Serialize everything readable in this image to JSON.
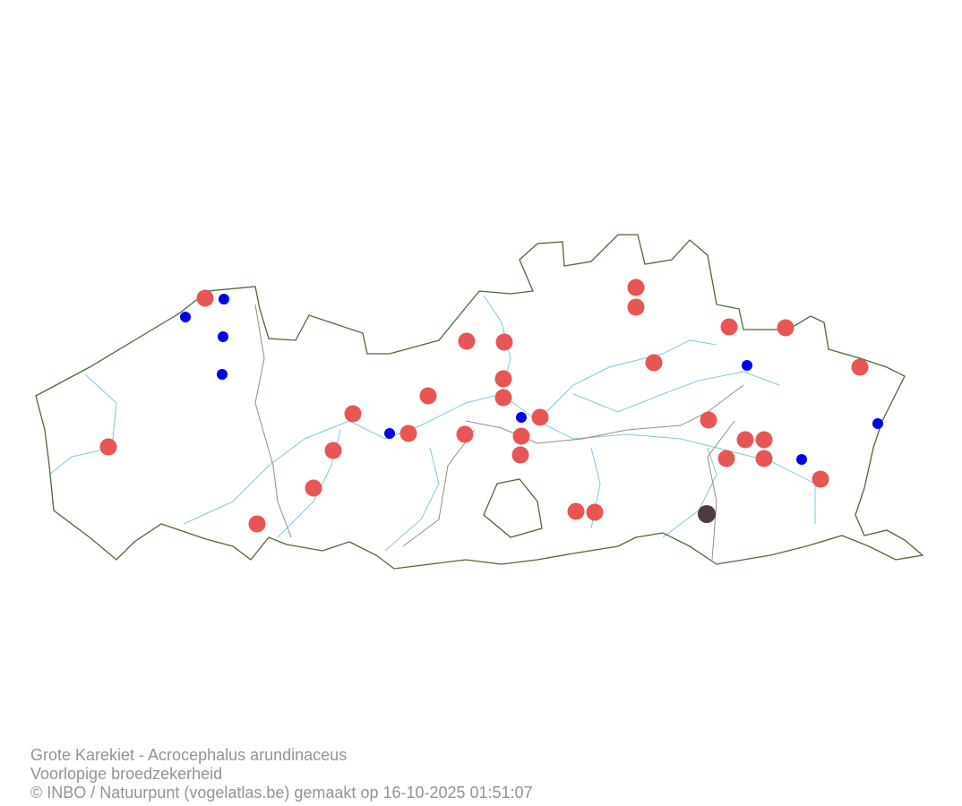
{
  "caption": {
    "line1": "Grote Karekiet - Acrocephalus arundinaceus",
    "line2": "Voorlopige broedzekerheid",
    "line3": "© INBO / Natuurpunt (vogelatlas.be) gemaakt op 16-10-2025 01:51:07"
  },
  "colors": {
    "border": "#4a6b34",
    "province_border": "#9a8a82",
    "river": "#7ec8dc",
    "category_red": "#e85555",
    "category_blue": "#0000ee",
    "category_dark": "#4e3a44"
  }
}
